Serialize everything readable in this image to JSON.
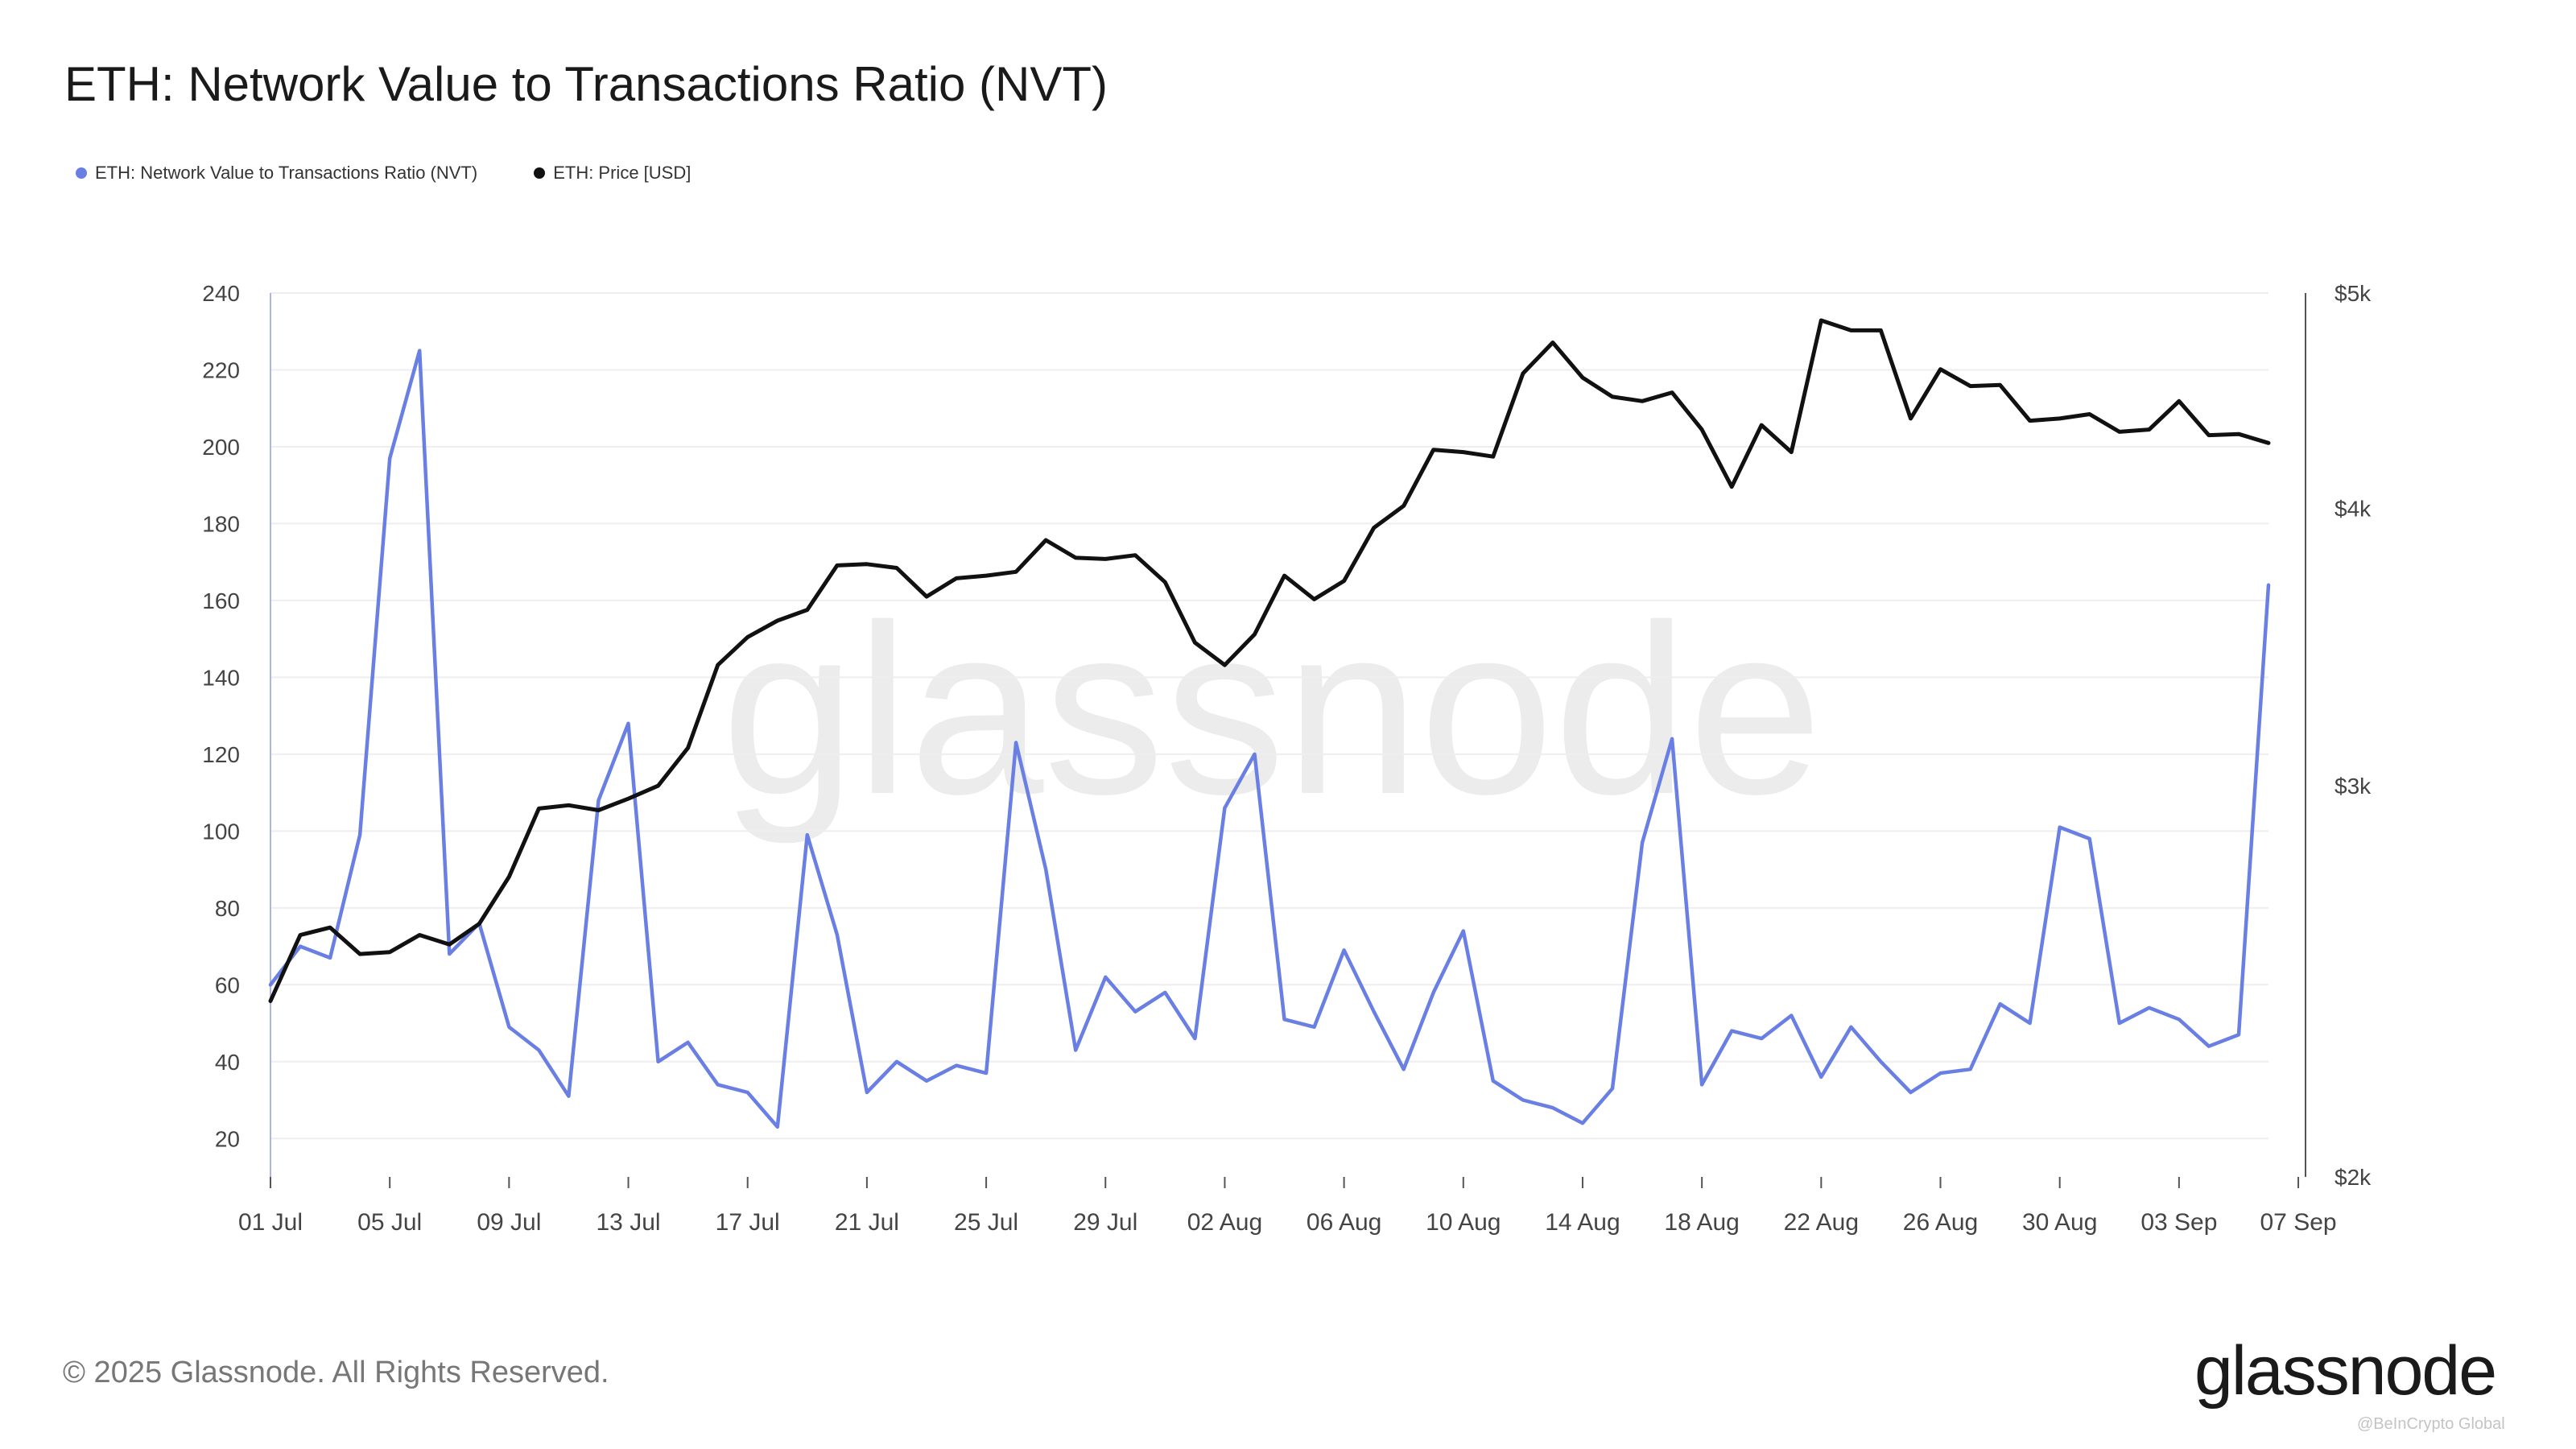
{
  "title": "ETH: Network Value to Transactions Ratio (NVT)",
  "legend": [
    {
      "label": "ETH: Network Value to Transactions Ratio (NVT)",
      "color": "#6a7fe3"
    },
    {
      "label": "ETH: Price [USD]",
      "color": "#111111"
    }
  ],
  "footer": "© 2025 Glassnode. All Rights Reserved.",
  "logo_text": "glassnode",
  "watermark": "glassnode",
  "credit": "@BeInCrypto Global",
  "chart_data": {
    "type": "line",
    "x_start": "2025-07-01",
    "x_end": "2025-09-07",
    "x_ticks": [
      "01 Jul",
      "05 Jul",
      "09 Jul",
      "13 Jul",
      "17 Jul",
      "21 Jul",
      "25 Jul",
      "29 Jul",
      "02 Aug",
      "06 Aug",
      "10 Aug",
      "14 Aug",
      "18 Aug",
      "22 Aug",
      "26 Aug",
      "30 Aug",
      "03 Sep",
      "07 Sep"
    ],
    "y_left": {
      "ticks": [
        20,
        40,
        60,
        80,
        100,
        120,
        140,
        160,
        180,
        200,
        220,
        240
      ],
      "ylim": [
        10,
        240
      ]
    },
    "y_right": {
      "ticks": [
        "$2k",
        "$3k",
        "$4k",
        "$5k"
      ],
      "tick_values": [
        2000,
        3000,
        4000,
        5000
      ],
      "scale": "log",
      "ylim": [
        2000,
        5000
      ]
    },
    "grid": true,
    "series": [
      {
        "name": "ETH: Network Value to Transactions Ratio (NVT)",
        "axis": "left",
        "color": "#6a7fe3",
        "values": [
          60,
          70,
          67,
          99,
          197,
          225,
          68,
          76,
          49,
          43,
          31,
          108,
          128,
          40,
          45,
          34,
          32,
          23,
          99,
          73,
          32,
          40,
          35,
          39,
          37,
          123,
          90,
          43,
          62,
          53,
          58,
          46,
          106,
          120,
          51,
          49,
          69,
          53,
          38,
          58,
          74,
          35,
          30,
          28,
          24,
          33,
          97,
          124,
          34,
          48,
          46,
          52,
          36,
          49,
          40,
          32,
          37,
          38,
          55,
          50,
          101,
          98,
          50,
          54,
          51,
          44,
          47,
          164
        ]
      },
      {
        "name": "ETH: Price [USD]",
        "axis": "right",
        "color": "#111111",
        "values": [
          2400,
          2570,
          2590,
          2520,
          2525,
          2570,
          2545,
          2600,
          2730,
          2930,
          2940,
          2925,
          2960,
          3000,
          3120,
          3400,
          3500,
          3560,
          3600,
          3770,
          3775,
          3760,
          3650,
          3720,
          3730,
          3745,
          3870,
          3800,
          3795,
          3810,
          3705,
          3480,
          3400,
          3510,
          3730,
          3640,
          3710,
          3920,
          4010,
          4250,
          4240,
          4220,
          4600,
          4750,
          4580,
          4490,
          4470,
          4510,
          4340,
          4090,
          4360,
          4240,
          4860,
          4810,
          4810,
          4390,
          4620,
          4540,
          4545,
          4380,
          4390,
          4410,
          4330,
          4340,
          4470,
          4315,
          4320,
          4280
        ]
      }
    ]
  }
}
